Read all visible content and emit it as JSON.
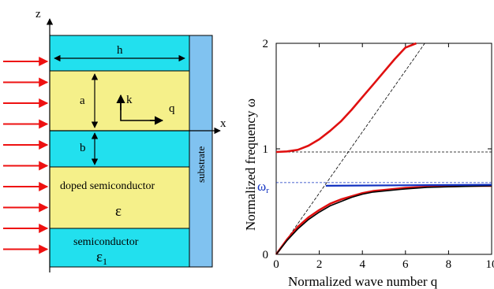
{
  "structure": {
    "axis_z": "z",
    "axis_x": "x",
    "label_h": "h",
    "label_a": "a",
    "label_b": "b",
    "label_k": "k",
    "label_q": "q",
    "doped_label": "doped semiconductor",
    "epsilon": "ε",
    "semiconductor_label": "semiconductor",
    "epsilon1_base": "ε",
    "epsilon1_sub": "1",
    "substrate_label": "substrate",
    "incident_arrow_count": 10,
    "colors": {
      "cyan_layer": "#22e0ee",
      "yellow_layer": "#f5f08a",
      "substrate": "#80c2f0",
      "arrow": "#ee1111"
    }
  },
  "chart_data": {
    "type": "line",
    "xlabel": "Normalized wave number q",
    "ylabel": "Normalized frequency  ω",
    "xlim": [
      0,
      10
    ],
    "ylim": [
      0,
      2
    ],
    "xticks": [
      "0",
      "2",
      "4",
      "6",
      "8",
      "10"
    ],
    "yticks": [
      "0",
      "1",
      "2"
    ],
    "omega_r_base": "ω",
    "omega_r_sub": "r",
    "omega_r": 0.66,
    "omega_upper_cutoff": 0.97,
    "light_line_slope": 0.29,
    "series": [
      {
        "color": "#e01010",
        "x": [
          0,
          0.5,
          1,
          1.5,
          2,
          2.5,
          3,
          3.5,
          4,
          4.5,
          5,
          5.5,
          6,
          6.5
        ],
        "y": [
          0.97,
          0.975,
          0.99,
          1.03,
          1.09,
          1.17,
          1.26,
          1.37,
          1.49,
          1.61,
          1.73,
          1.85,
          1.96,
          2.0
        ]
      },
      {
        "color": "#e01010",
        "x": [
          0,
          0.5,
          1,
          1.5,
          2,
          2.5,
          3,
          3.5,
          4,
          4.5,
          5,
          6,
          7,
          8,
          9,
          10
        ],
        "y": [
          0,
          0.14,
          0.26,
          0.35,
          0.42,
          0.48,
          0.52,
          0.55,
          0.58,
          0.6,
          0.61,
          0.63,
          0.64,
          0.645,
          0.65,
          0.65
        ]
      },
      {
        "color": "#000000",
        "x": [
          0,
          0.5,
          1,
          1.5,
          2,
          2.5,
          3,
          3.5,
          4,
          4.5,
          5,
          6,
          7,
          8,
          9,
          10
        ],
        "y": [
          0,
          0.13,
          0.24,
          0.33,
          0.4,
          0.46,
          0.5,
          0.54,
          0.57,
          0.59,
          0.6,
          0.62,
          0.635,
          0.64,
          0.645,
          0.65
        ]
      },
      {
        "color": "#1030c0",
        "x": [
          2.3,
          10
        ],
        "y": [
          0.65,
          0.66
        ]
      }
    ]
  }
}
